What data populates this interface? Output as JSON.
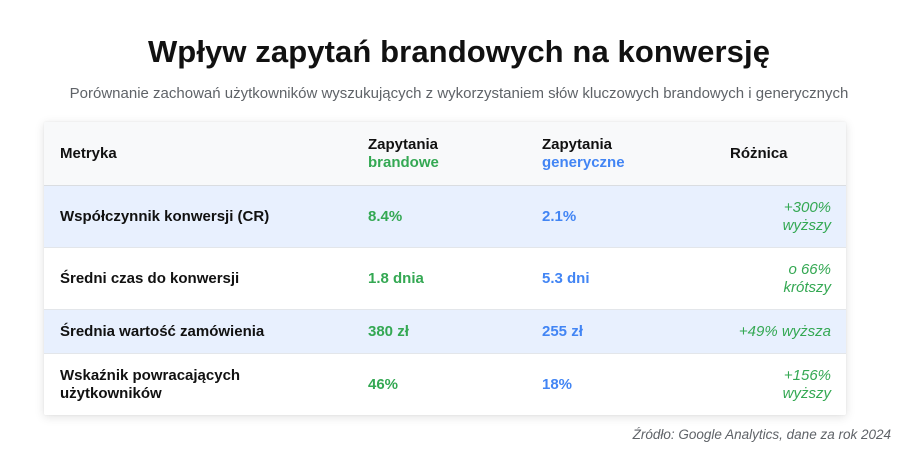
{
  "title": "Wpływ zapytań brandowych na konwersję",
  "subtitle": "Porównanie zachowań użytkowników wyszukujących z wykorzystaniem słów kluczowych brandowych i generycznych",
  "table": {
    "headers": {
      "metric": "Metryka",
      "brand_top": "Zapytania",
      "brand_bottom": "brandowe",
      "generic_top": "Zapytania",
      "generic_bottom": "generyczne",
      "diff": "Różnica"
    },
    "rows": [
      {
        "metric": "Współczynnik konwersji (CR)",
        "brand": "8.4%",
        "generic": "2.1%",
        "diff_line1": "+300%",
        "diff_line2": "wyższy"
      },
      {
        "metric": "Średni czas do konwersji",
        "brand": "1.8 dnia",
        "generic": "5.3 dni",
        "diff_line1": "o 66%",
        "diff_line2": "krótszy"
      },
      {
        "metric": "Średnia wartość zamówienia",
        "brand": "380 zł",
        "generic": "255 zł",
        "diff_line1": "+49% wyższa",
        "diff_line2": ""
      },
      {
        "metric_line1": "Wskaźnik powracających",
        "metric_line2": "użytkowników",
        "brand": "46%",
        "generic": "18%",
        "diff_line1": "+156%",
        "diff_line2": "wyższy"
      }
    ]
  },
  "colors": {
    "brand": "#34a853",
    "generic": "#4285f4",
    "highlight_row": "#e8f0fe"
  },
  "source": "Źródło: Google Analytics, dane za rok 2024"
}
